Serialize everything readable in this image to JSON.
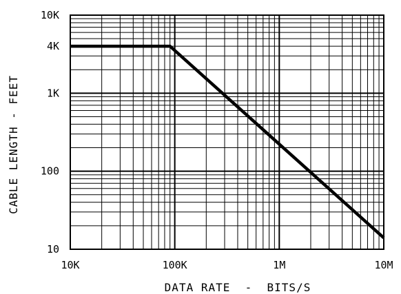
{
  "chart_data": {
    "type": "line",
    "title": "",
    "xlabel": "DATA RATE  -  BITS/S",
    "ylabel": "CABLE LENGTH - FEET",
    "x_scale": "log",
    "y_scale": "log",
    "xlim": [
      10000,
      10000000
    ],
    "ylim": [
      10,
      10000
    ],
    "x_ticks": [
      {
        "value": 10000,
        "label": "10K"
      },
      {
        "value": 100000,
        "label": "100K"
      },
      {
        "value": 1000000,
        "label": "1M"
      },
      {
        "value": 10000000,
        "label": "10M"
      }
    ],
    "y_ticks": [
      {
        "value": 10,
        "label": "10"
      },
      {
        "value": 100,
        "label": "100"
      },
      {
        "value": 1000,
        "label": "1K"
      },
      {
        "value": 4000,
        "label": "4K"
      },
      {
        "value": 10000,
        "label": "10K"
      }
    ],
    "grid": true,
    "series": [
      {
        "x": [
          10000,
          90000,
          10000000
        ],
        "y": [
          4000,
          4000,
          14
        ],
        "color": "#000000"
      }
    ]
  }
}
